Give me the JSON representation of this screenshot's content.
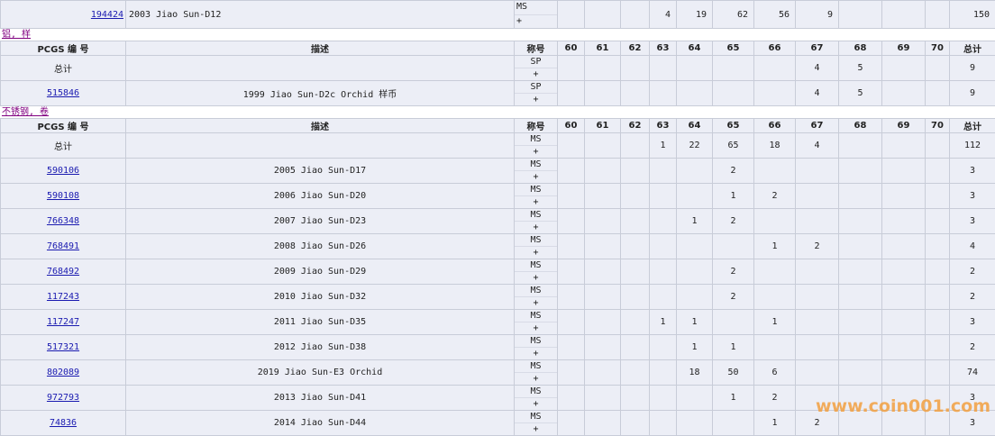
{
  "columns": [
    "PCGS 编 号",
    "描述",
    "称号",
    "60",
    "61",
    "62",
    "63",
    "64",
    "65",
    "66",
    "67",
    "68",
    "69",
    "70",
    "总计"
  ],
  "sections": [
    {
      "rows": [
        {
          "pcgs": "194424",
          "desc": "2003 Jiao Sun-D12",
          "grade": [
            "MS",
            "+"
          ],
          "counts": {
            "63": 4,
            "64": 19,
            "65": 62,
            "66": 56,
            "67": 9
          },
          "total": 150
        }
      ]
    },
    {
      "label": "铝, 样",
      "rows": [
        {
          "pcgs": "总计",
          "grade": [
            "SP",
            "+"
          ],
          "counts": {
            "67": 4,
            "68": 5
          },
          "total": 9
        },
        {
          "pcgs": "515846",
          "desc": "1999 Jiao Sun-D2c Orchid 样币",
          "grade": [
            "SP",
            "+"
          ],
          "counts": {
            "67": 4,
            "68": 5
          },
          "total": 9
        }
      ]
    },
    {
      "label": "不锈钢, 卷",
      "rows": [
        {
          "pcgs": "总计",
          "grade": [
            "MS",
            "+"
          ],
          "counts": {
            "63": 1,
            "64": 22,
            "65": 65,
            "66": 18,
            "67": 4
          },
          "total": 112
        },
        {
          "pcgs": "590106",
          "desc": "2005 Jiao Sun-D17",
          "grade": [
            "MS",
            "+"
          ],
          "counts": {
            "65": 2
          },
          "total": 3
        },
        {
          "pcgs": "590108",
          "desc": "2006 Jiao Sun-D20",
          "grade": [
            "MS",
            "+"
          ],
          "counts": {
            "65": 1,
            "66": 2
          },
          "total": 3
        },
        {
          "pcgs": "766348",
          "desc": "2007 Jiao Sun-D23",
          "grade": [
            "MS",
            "+"
          ],
          "counts": {
            "64": 1,
            "65": 2
          },
          "total": 3
        },
        {
          "pcgs": "768491",
          "desc": "2008 Jiao Sun-D26",
          "grade": [
            "MS",
            "+"
          ],
          "counts": {
            "66": 1,
            "67": 2
          },
          "total": 4
        },
        {
          "pcgs": "768492",
          "desc": "2009 Jiao Sun-D29",
          "grade": [
            "MS",
            "+"
          ],
          "counts": {
            "65": 2
          },
          "total": 2
        },
        {
          "pcgs": "117243",
          "desc": "2010 Jiao Sun-D32",
          "grade": [
            "MS",
            "+"
          ],
          "counts": {
            "65": 2
          },
          "total": 2
        },
        {
          "pcgs": "117247",
          "desc": "2011 Jiao Sun-D35",
          "grade": [
            "MS",
            "+"
          ],
          "counts": {
            "63": 1,
            "64": 1,
            "66": 1
          },
          "total": 3
        },
        {
          "pcgs": "517321",
          "desc": "2012 Jiao Sun-D38",
          "grade": [
            "MS",
            "+"
          ],
          "counts": {
            "64": 1,
            "65": 1
          },
          "total": 2
        },
        {
          "pcgs": "802089",
          "desc": "2019 Jiao Sun-E3 Orchid",
          "grade": [
            "MS",
            "+"
          ],
          "counts": {
            "64": 18,
            "65": 50,
            "66": 6
          },
          "total": 74
        },
        {
          "pcgs": "972793",
          "desc": "2013 Jiao Sun-D41",
          "grade": [
            "MS",
            "+"
          ],
          "counts": {
            "65": 1,
            "66": 2
          },
          "total": 3
        },
        {
          "pcgs": "74836",
          "desc": "2014 Jiao Sun-D44",
          "grade": [
            "MS",
            "+"
          ],
          "counts": {
            "66": 1,
            "67": 2
          },
          "total": 3
        }
      ]
    }
  ],
  "watermark": "www.coin001.com"
}
